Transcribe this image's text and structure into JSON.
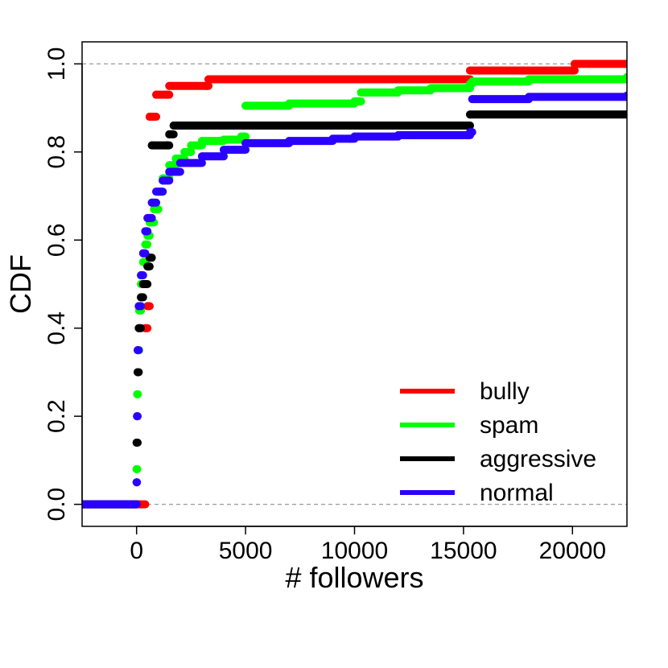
{
  "chart_data": {
    "type": "line",
    "xlabel": "# followers",
    "ylabel": "CDF",
    "xlim": [
      -2500,
      22500
    ],
    "ylim": [
      -0.05,
      1.05
    ],
    "x_ticks": [
      0,
      5000,
      10000,
      15000,
      20000
    ],
    "y_ticks": [
      0.0,
      0.2,
      0.4,
      0.6,
      0.8,
      1.0
    ],
    "y_tick_labels": [
      "0.0",
      "0.2",
      "0.4",
      "0.6",
      "0.8",
      "1.0"
    ],
    "reference_lines": [
      0.0,
      1.0
    ],
    "legend_position": "bottom-right",
    "series": [
      {
        "name": "bully",
        "color": "#ff0000",
        "points": [
          [
            -2500,
            0.0
          ],
          [
            0,
            0.0
          ],
          [
            400,
            0.4
          ],
          [
            500,
            0.45
          ],
          [
            600,
            0.88
          ],
          [
            800,
            0.88
          ],
          [
            900,
            0.93
          ],
          [
            1400,
            0.93
          ],
          [
            1500,
            0.95
          ],
          [
            3200,
            0.95
          ],
          [
            3300,
            0.965
          ],
          [
            15200,
            0.965
          ],
          [
            15300,
            0.985
          ],
          [
            20000,
            0.985
          ],
          [
            20100,
            1.0
          ],
          [
            22500,
            1.0
          ]
        ]
      },
      {
        "name": "spam",
        "color": "#00ff00",
        "points": [
          [
            -2500,
            0.0
          ],
          [
            0,
            0.0
          ],
          [
            0,
            0.08
          ],
          [
            30,
            0.25
          ],
          [
            60,
            0.35
          ],
          [
            120,
            0.44
          ],
          [
            200,
            0.5
          ],
          [
            300,
            0.55
          ],
          [
            400,
            0.59
          ],
          [
            500,
            0.61
          ],
          [
            600,
            0.64
          ],
          [
            800,
            0.67
          ],
          [
            1000,
            0.71
          ],
          [
            1200,
            0.74
          ],
          [
            1500,
            0.77
          ],
          [
            1800,
            0.785
          ],
          [
            2200,
            0.8
          ],
          [
            2500,
            0.815
          ],
          [
            3000,
            0.825
          ],
          [
            4000,
            0.828
          ],
          [
            4800,
            0.835
          ],
          [
            5000,
            0.905
          ],
          [
            7000,
            0.91
          ],
          [
            10000,
            0.915
          ],
          [
            10300,
            0.935
          ],
          [
            12000,
            0.94
          ],
          [
            13500,
            0.945
          ],
          [
            15300,
            0.955
          ],
          [
            15400,
            0.96
          ],
          [
            18000,
            0.965
          ],
          [
            22500,
            0.97
          ]
        ]
      },
      {
        "name": "aggressive",
        "color": "#000000",
        "points": [
          [
            -2500,
            0.0
          ],
          [
            0,
            0.0
          ],
          [
            0,
            0.14
          ],
          [
            50,
            0.3
          ],
          [
            100,
            0.4
          ],
          [
            200,
            0.47
          ],
          [
            300,
            0.5
          ],
          [
            500,
            0.54
          ],
          [
            600,
            0.56
          ],
          [
            700,
            0.815
          ],
          [
            1400,
            0.815
          ],
          [
            1500,
            0.84
          ],
          [
            1700,
            0.86
          ],
          [
            15200,
            0.86
          ],
          [
            15300,
            0.885
          ],
          [
            22500,
            0.885
          ]
        ]
      },
      {
        "name": "normal",
        "color": "#2a00ff",
        "points": [
          [
            -2500,
            0.0
          ],
          [
            0,
            0.0
          ],
          [
            0,
            0.05
          ],
          [
            20,
            0.2
          ],
          [
            50,
            0.35
          ],
          [
            100,
            0.45
          ],
          [
            200,
            0.52
          ],
          [
            300,
            0.57
          ],
          [
            400,
            0.62
          ],
          [
            500,
            0.65
          ],
          [
            700,
            0.685
          ],
          [
            900,
            0.71
          ],
          [
            1200,
            0.735
          ],
          [
            1500,
            0.755
          ],
          [
            2000,
            0.775
          ],
          [
            3000,
            0.79
          ],
          [
            4000,
            0.805
          ],
          [
            5000,
            0.82
          ],
          [
            7000,
            0.825
          ],
          [
            9000,
            0.83
          ],
          [
            9800,
            0.83
          ],
          [
            10000,
            0.835
          ],
          [
            12000,
            0.838
          ],
          [
            15300,
            0.845
          ],
          [
            15400,
            0.92
          ],
          [
            18000,
            0.925
          ],
          [
            22500,
            0.928
          ]
        ]
      }
    ]
  }
}
